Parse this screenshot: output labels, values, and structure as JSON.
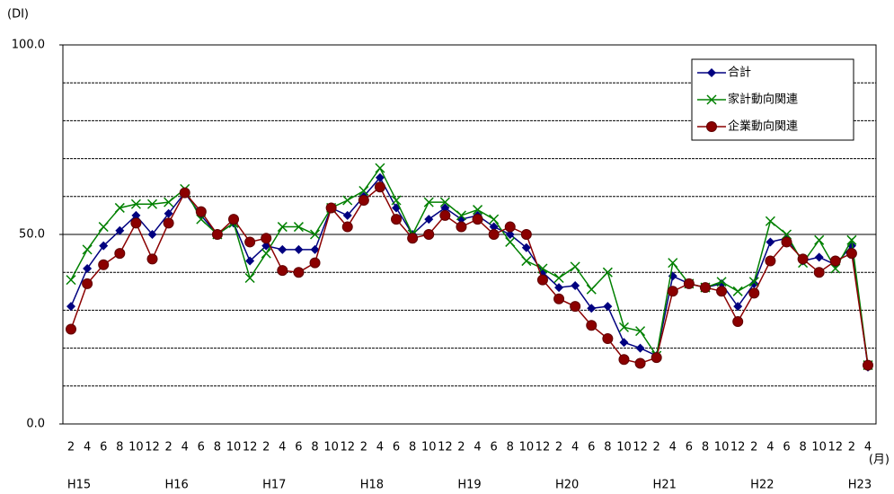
{
  "chart_data": {
    "type": "line",
    "y_unit_label": "(DI)",
    "x_unit_label": "(月)",
    "categories": [
      "2",
      "4",
      "6",
      "8",
      "10",
      "12",
      "2",
      "4",
      "6",
      "8",
      "10",
      "12",
      "2",
      "4",
      "6",
      "8",
      "10",
      "12",
      "2",
      "4",
      "6",
      "8",
      "10",
      "12",
      "2",
      "4",
      "6",
      "8",
      "10",
      "12",
      "2",
      "4",
      "6",
      "8",
      "10",
      "12",
      "2",
      "4",
      "6",
      "8",
      "10",
      "12",
      "2",
      "4",
      "6",
      "8",
      "10",
      "12",
      "2",
      "4"
    ],
    "years": [
      "H15",
      "H16",
      "H17",
      "H18",
      "H19",
      "H20",
      "H21",
      "H22",
      "H23"
    ],
    "ylim": [
      0,
      100
    ],
    "yticks": [
      {
        "value": 0,
        "label": "0.0"
      },
      {
        "value": 50,
        "label": "50.0"
      },
      {
        "value": 100,
        "label": "100.0"
      }
    ],
    "minor_yticks": [
      10,
      20,
      30,
      40,
      60,
      70,
      80,
      90
    ],
    "grid": true,
    "legend": "upper right",
    "series": [
      {
        "name": "合計",
        "color": "#000080",
        "marker": "diamond",
        "values": [
          31,
          41,
          47,
          51,
          55,
          50,
          55.5,
          61,
          55,
          50,
          53,
          43,
          47,
          46,
          46,
          46,
          57,
          55,
          60,
          65,
          57,
          50,
          54,
          57,
          54,
          55,
          52,
          50,
          46.5,
          40,
          36,
          36.5,
          30.5,
          31,
          21.5,
          20,
          18,
          39,
          37,
          36,
          37,
          31,
          37,
          48,
          49,
          43,
          44,
          42,
          47,
          15
        ]
      },
      {
        "name": "家計動向関連",
        "color": "#008000",
        "marker": "x",
        "values": [
          38,
          46,
          52,
          57,
          58,
          58,
          58.5,
          62,
          54,
          50,
          53,
          38.5,
          45,
          52,
          52,
          50,
          57,
          59,
          61.5,
          67.5,
          59,
          50,
          58.5,
          58.5,
          55,
          56.5,
          54,
          48,
          43,
          41,
          38.5,
          41.5,
          35.5,
          40,
          25.5,
          24.5,
          18,
          42.5,
          37,
          36,
          37.5,
          35,
          37.5,
          53.5,
          50,
          42.5,
          48.5,
          41,
          48.5,
          15.5
        ]
      },
      {
        "name": "企業動向関連",
        "color": "#8b0000",
        "marker": "circle",
        "values": [
          25,
          37,
          42,
          45,
          53,
          43.5,
          53,
          61,
          56,
          50,
          54,
          48,
          49,
          40.5,
          40,
          42.5,
          57,
          52,
          59,
          62.5,
          54,
          49,
          50,
          55,
          52,
          54,
          50,
          52,
          50,
          38,
          33,
          31,
          26,
          22.5,
          17,
          16,
          17.5,
          35,
          37,
          36,
          35,
          27,
          34.5,
          43,
          48,
          43.5,
          40,
          43,
          45,
          15.5
        ]
      }
    ]
  }
}
